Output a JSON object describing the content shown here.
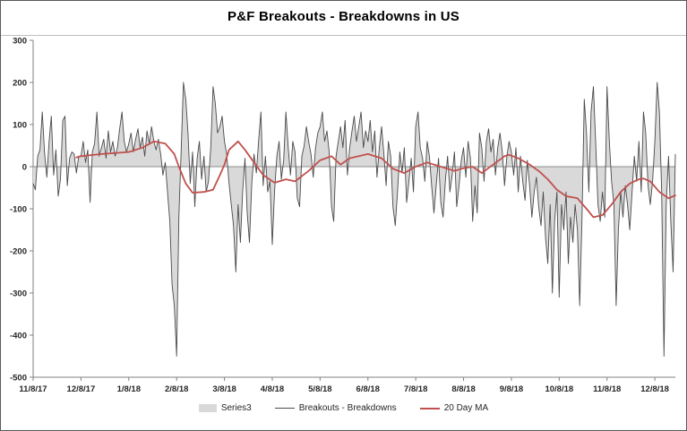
{
  "chart_data": {
    "type": "area+line",
    "title": "P&F Breakouts - Breakdowns in US",
    "ylim": [
      -500,
      300
    ],
    "ytick_step": 100,
    "ytick_labels": [
      "300",
      "200",
      "100",
      "0",
      "-100",
      "-200",
      "-300",
      "-400",
      "-500"
    ],
    "grid": "none",
    "legend_position": "bottom",
    "xticks": [
      {
        "label": "11/8/17",
        "i": 0
      },
      {
        "label": "12/8/17",
        "i": 21
      },
      {
        "label": "1/8/18",
        "i": 42
      },
      {
        "label": "2/8/18",
        "i": 63
      },
      {
        "label": "3/8/18",
        "i": 84
      },
      {
        "label": "4/8/18",
        "i": 105
      },
      {
        "label": "5/8/18",
        "i": 126
      },
      {
        "label": "6/8/18",
        "i": 147
      },
      {
        "label": "7/8/18",
        "i": 168
      },
      {
        "label": "8/8/18",
        "i": 189
      },
      {
        "label": "9/8/18",
        "i": 210
      },
      {
        "label": "10/8/18",
        "i": 231
      },
      {
        "label": "11/8/18",
        "i": 252
      },
      {
        "label": "12/8/18",
        "i": 273
      }
    ],
    "series": [
      {
        "name": "Series3",
        "type": "area",
        "color": "#d9d9d9"
      },
      {
        "name": "Breakouts - Breakdowns",
        "type": "line",
        "color": "#4a4a4a"
      },
      {
        "name": "20 Day MA",
        "type": "line",
        "color": "#c0504d",
        "keypoints": [
          [
            19,
            22
          ],
          [
            21,
            25
          ],
          [
            30,
            30
          ],
          [
            42,
            35
          ],
          [
            48,
            45
          ],
          [
            53,
            60
          ],
          [
            58,
            55
          ],
          [
            62,
            30
          ],
          [
            64,
            0
          ],
          [
            67,
            -40
          ],
          [
            70,
            -62
          ],
          [
            75,
            -60
          ],
          [
            79,
            -55
          ],
          [
            82,
            -20
          ],
          [
            84,
            5
          ],
          [
            86,
            40
          ],
          [
            90,
            60
          ],
          [
            93,
            40
          ],
          [
            97,
            10
          ],
          [
            101,
            -20
          ],
          [
            106,
            -38
          ],
          [
            111,
            -30
          ],
          [
            115,
            -35
          ],
          [
            121,
            -10
          ],
          [
            126,
            15
          ],
          [
            131,
            25
          ],
          [
            135,
            5
          ],
          [
            139,
            20
          ],
          [
            143,
            25
          ],
          [
            147,
            30
          ],
          [
            153,
            20
          ],
          [
            158,
            -5
          ],
          [
            163,
            -15
          ],
          [
            168,
            0
          ],
          [
            173,
            10
          ],
          [
            179,
            0
          ],
          [
            185,
            -10
          ],
          [
            188,
            -5
          ],
          [
            193,
            0
          ],
          [
            197,
            -15
          ],
          [
            202,
            5
          ],
          [
            207,
            25
          ],
          [
            209,
            28
          ],
          [
            213,
            20
          ],
          [
            218,
            5
          ],
          [
            222,
            -10
          ],
          [
            226,
            -30
          ],
          [
            230,
            -55
          ],
          [
            234,
            -70
          ],
          [
            239,
            -75
          ],
          [
            243,
            -100
          ],
          [
            246,
            -120
          ],
          [
            250,
            -115
          ],
          [
            254,
            -90
          ],
          [
            258,
            -60
          ],
          [
            262,
            -40
          ],
          [
            266,
            -30
          ],
          [
            268,
            -28
          ],
          [
            271,
            -35
          ],
          [
            275,
            -60
          ],
          [
            279,
            -75
          ],
          [
            282,
            -68
          ]
        ]
      }
    ],
    "values": [
      -40,
      -55,
      25,
      40,
      130,
      35,
      -25,
      60,
      120,
      -20,
      40,
      -70,
      -30,
      110,
      120,
      -45,
      20,
      35,
      30,
      -15,
      25,
      25,
      60,
      10,
      40,
      -85,
      35,
      55,
      130,
      25,
      45,
      65,
      20,
      85,
      35,
      60,
      25,
      45,
      90,
      130,
      60,
      35,
      55,
      80,
      35,
      65,
      90,
      45,
      70,
      25,
      85,
      55,
      95,
      60,
      40,
      65,
      30,
      -20,
      10,
      -60,
      -130,
      -280,
      -330,
      -450,
      -120,
      40,
      200,
      160,
      80,
      -40,
      35,
      -95,
      20,
      60,
      -30,
      25,
      -60,
      -35,
      45,
      190,
      150,
      80,
      95,
      120,
      60,
      30,
      -40,
      -90,
      -140,
      -250,
      -90,
      -180,
      -60,
      20,
      -110,
      -180,
      -40,
      30,
      -15,
      60,
      130,
      -45,
      25,
      -60,
      -35,
      -185,
      -60,
      25,
      60,
      -30,
      15,
      130,
      45,
      -20,
      60,
      35,
      -75,
      -95,
      25,
      50,
      95,
      60,
      30,
      -25,
      45,
      80,
      95,
      130,
      60,
      85,
      35,
      -95,
      -130,
      25,
      60,
      95,
      45,
      110,
      -20,
      45,
      85,
      120,
      60,
      95,
      130,
      45,
      85,
      60,
      110,
      35,
      85,
      -25,
      45,
      95,
      30,
      -45,
      60,
      25,
      -95,
      -140,
      -60,
      35,
      -15,
      45,
      -85,
      -35,
      20,
      -60,
      95,
      130,
      45,
      20,
      -35,
      60,
      25,
      -45,
      -110,
      -45,
      20,
      -85,
      -120,
      -35,
      25,
      -60,
      -20,
      35,
      -95,
      -45,
      15,
      45,
      -25,
      60,
      20,
      -130,
      -45,
      -110,
      80,
      45,
      -35,
      60,
      90,
      35,
      65,
      -20,
      45,
      80,
      35,
      -45,
      25,
      60,
      35,
      -20,
      45,
      -60,
      25,
      -35,
      -80,
      15,
      -45,
      -120,
      -60,
      -25,
      -95,
      -140,
      -60,
      -170,
      -230,
      -90,
      -300,
      -130,
      -60,
      -310,
      -90,
      -150,
      -60,
      -230,
      -120,
      -180,
      -90,
      -150,
      -330,
      -120,
      160,
      80,
      -60,
      130,
      190,
      60,
      -90,
      -130,
      -60,
      -120,
      190,
      60,
      -35,
      -90,
      -330,
      -150,
      -60,
      -120,
      -45,
      -90,
      -150,
      -60,
      25,
      -35,
      60,
      -60,
      130,
      80,
      -45,
      -90,
      -35,
      60,
      200,
      130,
      -60,
      -450,
      -90,
      25,
      -130,
      -250,
      30
    ]
  }
}
